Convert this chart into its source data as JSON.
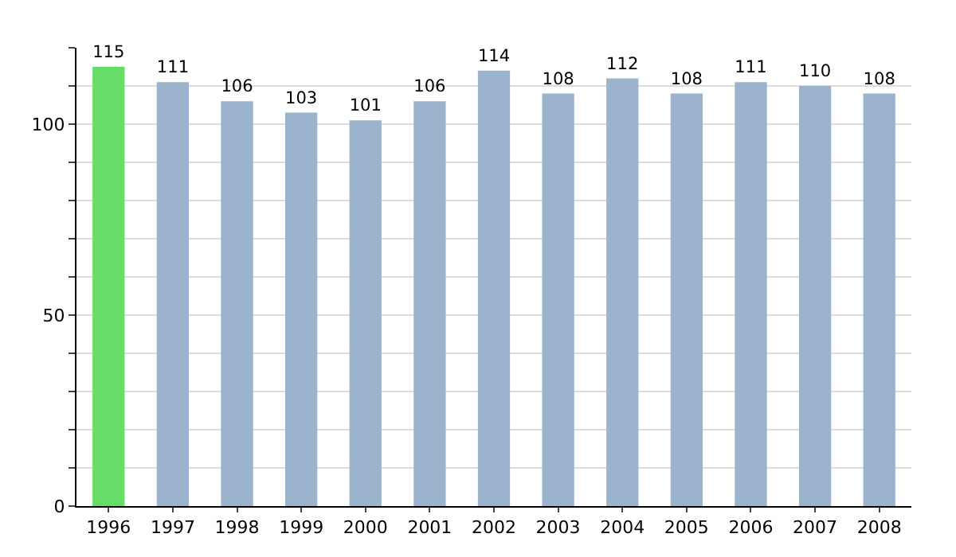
{
  "chart_data": {
    "type": "bar",
    "categories": [
      "1996",
      "1997",
      "1998",
      "1999",
      "2000",
      "2001",
      "2002",
      "2003",
      "2004",
      "2005",
      "2006",
      "2007",
      "2008"
    ],
    "values": [
      115,
      111,
      106,
      103,
      101,
      106,
      114,
      108,
      112,
      108,
      111,
      110,
      108
    ],
    "colors": [
      "#66dd66",
      "#9bb3cc",
      "#9bb3cc",
      "#9bb3cc",
      "#9bb3cc",
      "#9bb3cc",
      "#9bb3cc",
      "#9bb3cc",
      "#9bb3cc",
      "#9bb3cc",
      "#9bb3cc",
      "#9bb3cc",
      "#9bb3cc"
    ],
    "ylim": [
      0,
      120
    ],
    "yticks": [
      0,
      {
        "value": 10,
        "label": null
      },
      {
        "value": 20,
        "label": null
      },
      {
        "value": 30,
        "label": null
      },
      {
        "value": 40,
        "label": null
      },
      50,
      {
        "value": 60,
        "label": null
      },
      {
        "value": 70,
        "label": null
      },
      {
        "value": 80,
        "label": null
      },
      {
        "value": 90,
        "label": null
      },
      100,
      {
        "value": 110,
        "label": null
      },
      {
        "value": 120,
        "label": null
      }
    ],
    "grid": "y",
    "data_labels": true
  }
}
